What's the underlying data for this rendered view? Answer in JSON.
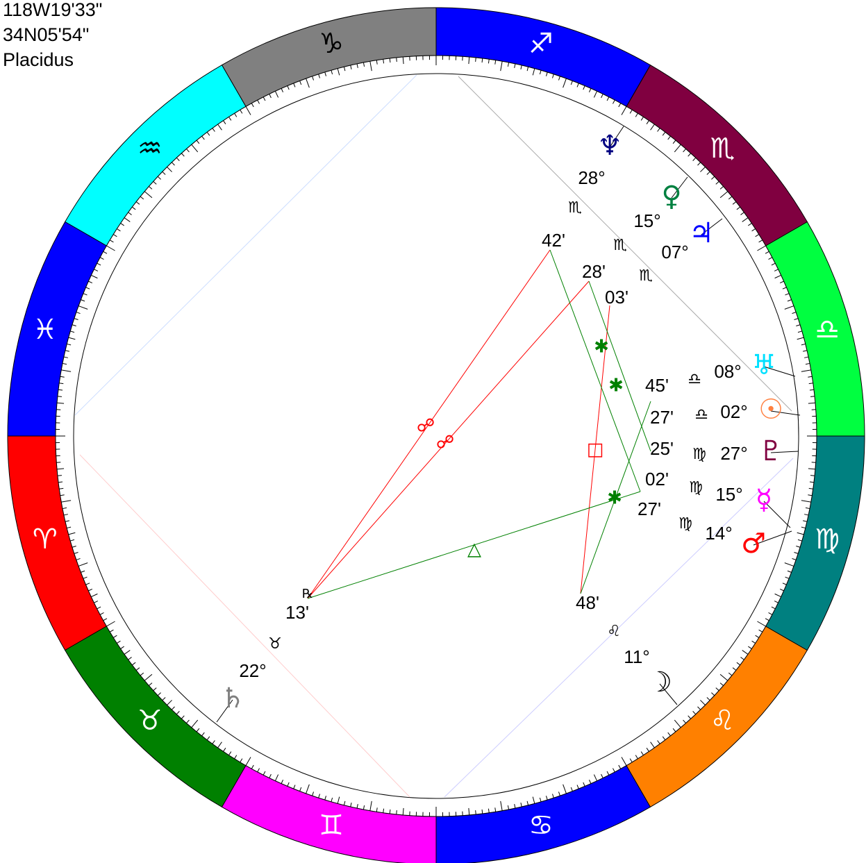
{
  "header": {
    "lines": [
      "118W19'33\"",
      "34N05'54\"",
      "Placidus"
    ]
  },
  "signs": [
    {
      "glyph": "♈",
      "color": "#ff0000",
      "text_color": "#ffffff"
    },
    {
      "glyph": "♉",
      "color": "#008000",
      "text_color": "#ffffff"
    },
    {
      "glyph": "♊",
      "color": "#ff00ff",
      "text_color": "#ffffff"
    },
    {
      "glyph": "♋",
      "color": "#0000ff",
      "text_color": "#ffffff"
    },
    {
      "glyph": "♌",
      "color": "#ff8000",
      "text_color": "#ffffff"
    },
    {
      "glyph": "♍",
      "color": "#008080",
      "text_color": "#ffffff"
    },
    {
      "glyph": "♎",
      "color": "#00ff40",
      "text_color": "#ffffff"
    },
    {
      "glyph": "♏",
      "color": "#800040",
      "text_color": "#ffffff"
    },
    {
      "glyph": "♐",
      "color": "#0000ff",
      "text_color": "#ffffff"
    },
    {
      "glyph": "♑",
      "color": "#808080",
      "text_color": "#000000"
    },
    {
      "glyph": "♒",
      "color": "#00ffff",
      "text_color": "#000000"
    },
    {
      "glyph": "♓",
      "color": "#0000ff",
      "text_color": "#ffffff"
    }
  ],
  "planets": [
    {
      "glyph": "♆",
      "color": "#000080",
      "degree": "28°",
      "sign": "♏",
      "minute": "42'"
    },
    {
      "glyph": "♀",
      "color": "#008040",
      "degree": "15°",
      "sign": "♏",
      "minute": "28'"
    },
    {
      "glyph": "♃",
      "color": "#0000ff",
      "degree": "07°",
      "sign": "♏",
      "minute": "03'"
    },
    {
      "glyph": "♅",
      "color": "#00e0ff",
      "degree": "08°",
      "sign": "♎",
      "minute": "45'"
    },
    {
      "glyph": "☉",
      "color": "#ff8040",
      "degree": "02°",
      "sign": "♎",
      "minute": "27'"
    },
    {
      "glyph": "♇",
      "color": "#800040",
      "degree": "27°",
      "sign": "♍",
      "minute": "25'"
    },
    {
      "glyph": "☿",
      "color": "#ff00ff",
      "degree": "15°",
      "sign": "♍",
      "minute": "02'"
    },
    {
      "glyph": "♂",
      "color": "#ff0000",
      "degree": "14°",
      "sign": "♍",
      "minute": "27'"
    },
    {
      "glyph": "☽",
      "color": "#000000",
      "degree": "11°",
      "sign": "♌",
      "minute": "48'"
    },
    {
      "glyph": "♄",
      "color": "#808080",
      "degree": "22°",
      "sign": "♉",
      "minute": "13'",
      "retrograde": "℞"
    }
  ],
  "aspects": [
    {
      "glyph": "☍",
      "color": "#ff0000"
    },
    {
      "glyph": "☍",
      "color": "#ff0000"
    },
    {
      "glyph": "□",
      "color": "#ff0000"
    },
    {
      "glyph": "✱",
      "color": "#008000"
    },
    {
      "glyph": "✱",
      "color": "#008000"
    },
    {
      "glyph": "✱",
      "color": "#008000"
    },
    {
      "glyph": "△",
      "color": "#008000"
    }
  ]
}
